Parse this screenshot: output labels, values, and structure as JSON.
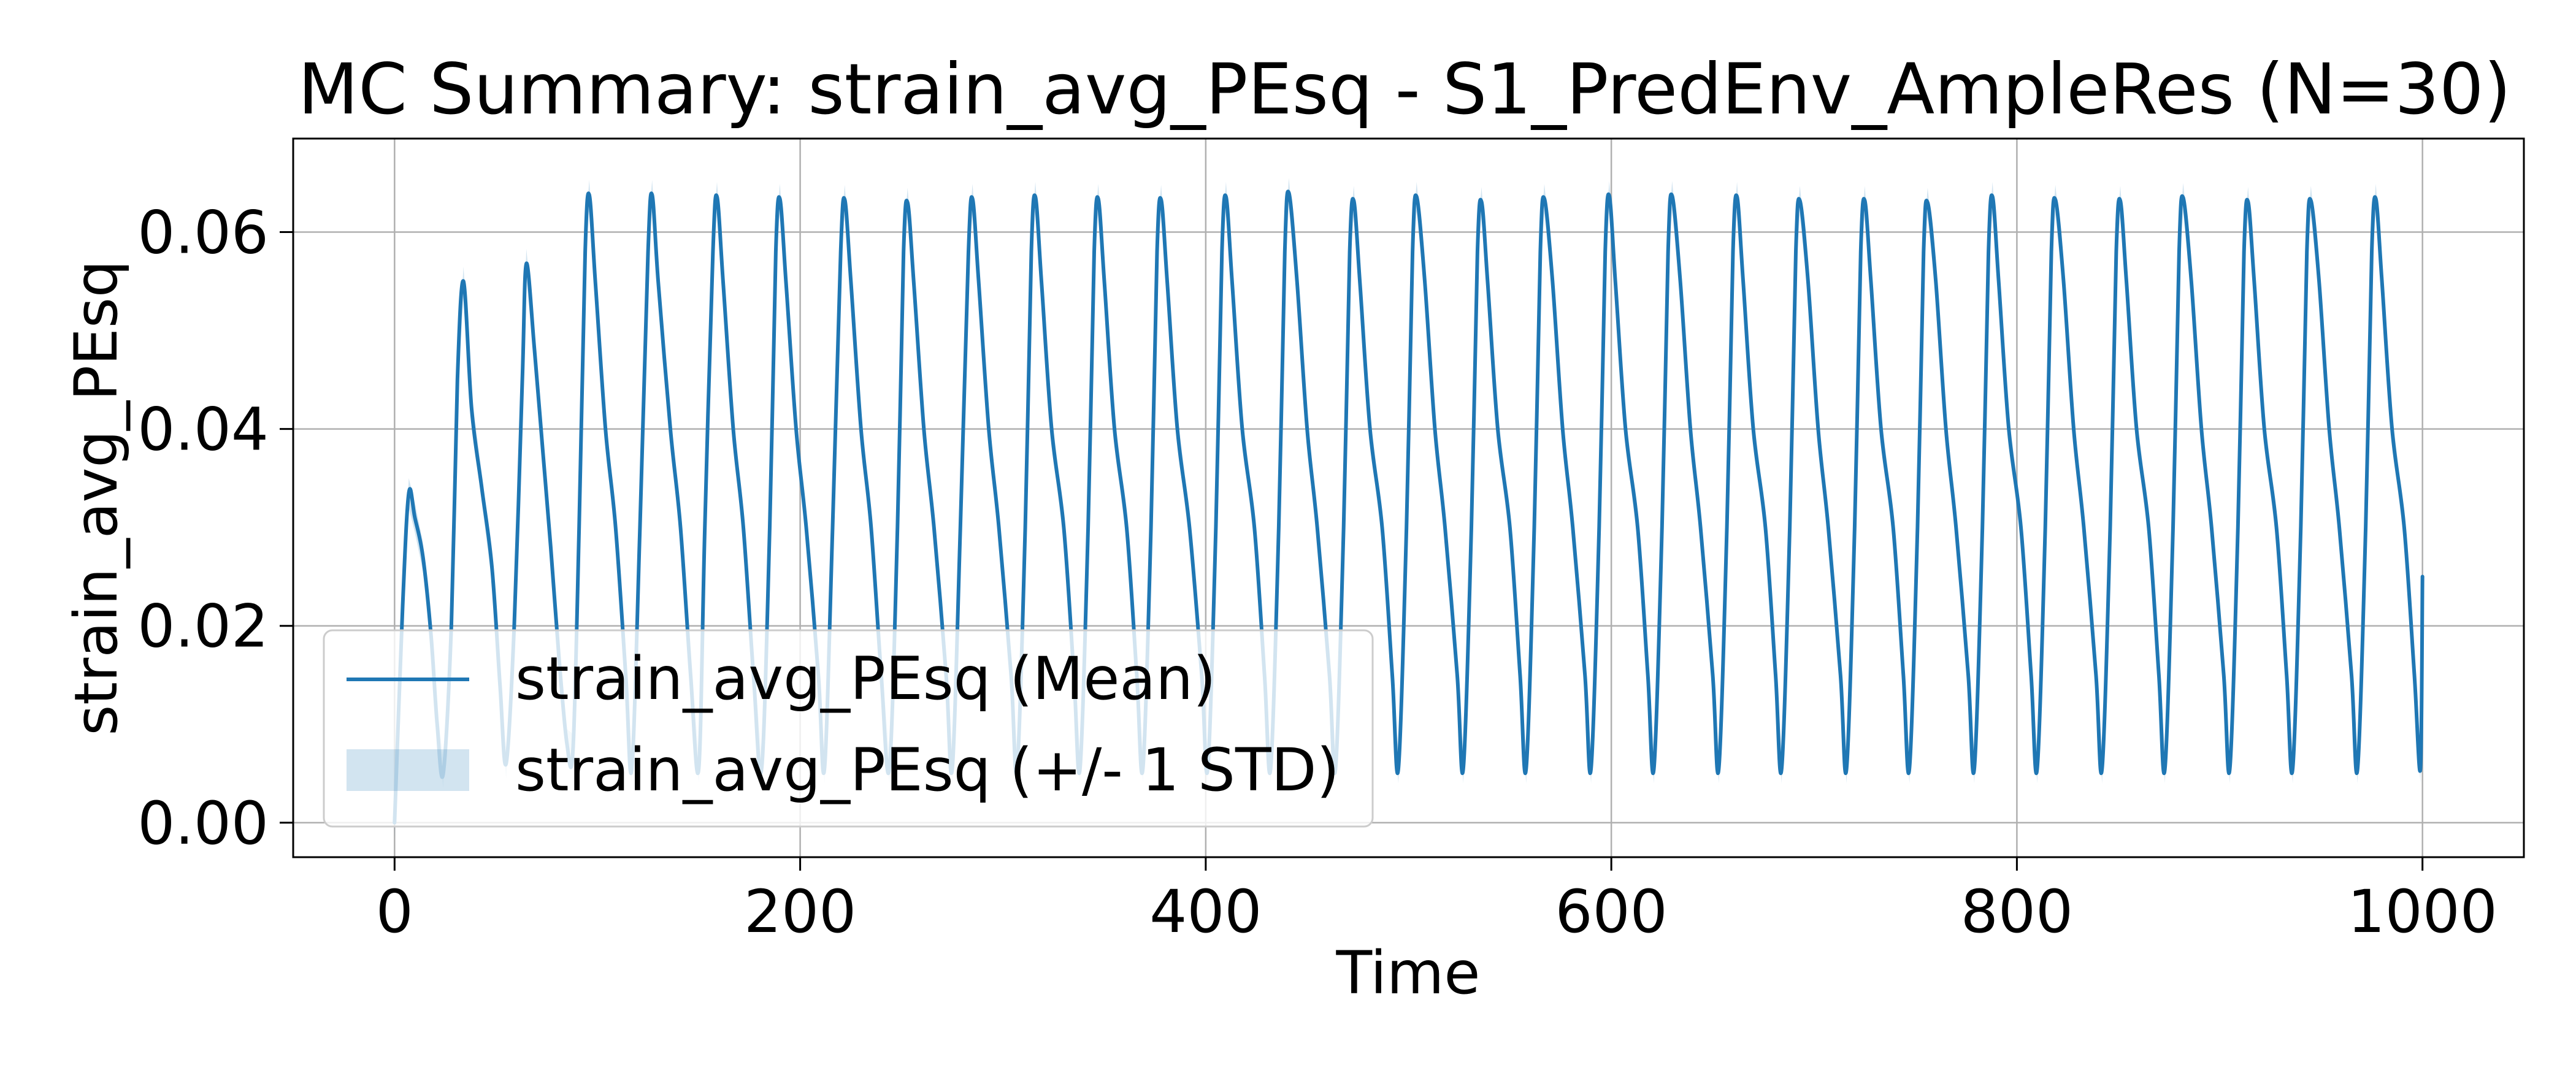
{
  "chart_data": {
    "type": "line",
    "title": "MC Summary: strain_avg_PEsq - S1_PredEnv_AmpleRes (N=30)",
    "xlabel": "Time",
    "ylabel": "strain_avg_PEsq",
    "xlim": [
      -50,
      1050
    ],
    "ylim": [
      -0.0035,
      0.0695
    ],
    "xticks": [
      0,
      200,
      400,
      600,
      800,
      1000
    ],
    "xtick_labels": [
      "0",
      "200",
      "400",
      "600",
      "800",
      "1000"
    ],
    "yticks": [
      0.0,
      0.02,
      0.04,
      0.06
    ],
    "ytick_labels": [
      "0.00",
      "0.02",
      "0.04",
      "0.06"
    ],
    "grid": true,
    "legend_position": "lower-left",
    "colors": {
      "mean": "#1f77b4",
      "band": "#1f77b4",
      "band_alpha": 0.2
    },
    "series": [
      {
        "name": "strain_avg_PEsq (Mean)",
        "kind": "line"
      },
      {
        "name": "strain_avg_PEsq (+/- 1 STD)",
        "kind": "band"
      }
    ],
    "mean_series": {
      "x": [
        0,
        4,
        7,
        10,
        14,
        18,
        21,
        24,
        28,
        31,
        34,
        38,
        43,
        48,
        52,
        55,
        59,
        63,
        65,
        69,
        73,
        77,
        81,
        85,
        88,
        91,
        94,
        96,
        99,
        104,
        109,
        114,
        117,
        121,
        125,
        127,
        130,
        136,
        141,
        146,
        150,
        153,
        157,
        159,
        162,
        167,
        172,
        177,
        181,
        185,
        188,
        190,
        193,
        198,
        203,
        209,
        212,
        216,
        220,
        222,
        225,
        230,
        235,
        240,
        244,
        248,
        251,
        253,
        256,
        261,
        266,
        272,
        275,
        279,
        283,
        285,
        288,
        293,
        298,
        304,
        307,
        311,
        314,
        316,
        319,
        324,
        330,
        335,
        338,
        342,
        345,
        347,
        350,
        355,
        361,
        366,
        369,
        373,
        376,
        378,
        381,
        386,
        392,
        398,
        401,
        405,
        408,
        410,
        413,
        418,
        424,
        429,
        432,
        436,
        439,
        441,
        445,
        450,
        455,
        461,
        464,
        468,
        471,
        473,
        476,
        481,
        487,
        492,
        495,
        499,
        502,
        504,
        508,
        513,
        518,
        524,
        527,
        531,
        534,
        536,
        539,
        544,
        550,
        555,
        558,
        562,
        565,
        567,
        571,
        576,
        581,
        587,
        590,
        594,
        597,
        599,
        602,
        607,
        613,
        618,
        621,
        625,
        628,
        630,
        634,
        639,
        644,
        650,
        653,
        657,
        660,
        662,
        665,
        670,
        676,
        681,
        684,
        688,
        691,
        693,
        697,
        702,
        707,
        713,
        716,
        720,
        723,
        725,
        728,
        733,
        739,
        744,
        747,
        751,
        754,
        756,
        760,
        765,
        770,
        776,
        779,
        783,
        786,
        788,
        791,
        796,
        802,
        807,
        810,
        814,
        817,
        819,
        823,
        828,
        833,
        839,
        842,
        846,
        849,
        851,
        854,
        859,
        865,
        870,
        873,
        877,
        880,
        882,
        886,
        891,
        896,
        902,
        905,
        909,
        912,
        914,
        917,
        922,
        928,
        933,
        936,
        940,
        943,
        945,
        949,
        954,
        959,
        965,
        968,
        972,
        975,
        977,
        980,
        985,
        991,
        996,
        999,
        1000
      ],
      "y": [
        0.0,
        0.022,
        0.0335,
        0.031,
        0.027,
        0.019,
        0.01,
        0.005,
        0.02,
        0.045,
        0.055,
        0.042,
        0.034,
        0.026,
        0.014,
        0.006,
        0.02,
        0.045,
        0.0568,
        0.048,
        0.038,
        0.028,
        0.017,
        0.008,
        0.0075,
        0.03,
        0.058,
        0.0638,
        0.055,
        0.04,
        0.03,
        0.015,
        0.0055,
        0.03,
        0.058,
        0.0638,
        0.055,
        0.04,
        0.03,
        0.015,
        0.0055,
        0.03,
        0.058,
        0.0636,
        0.055,
        0.04,
        0.03,
        0.015,
        0.0055,
        0.03,
        0.058,
        0.0634,
        0.055,
        0.04,
        0.03,
        0.015,
        0.0055,
        0.03,
        0.058,
        0.0633,
        0.055,
        0.04,
        0.03,
        0.015,
        0.0055,
        0.03,
        0.058,
        0.063,
        0.055,
        0.04,
        0.03,
        0.015,
        0.0055,
        0.03,
        0.058,
        0.0634,
        0.055,
        0.04,
        0.03,
        0.015,
        0.0055,
        0.03,
        0.058,
        0.0636,
        0.055,
        0.04,
        0.03,
        0.015,
        0.0055,
        0.03,
        0.058,
        0.0634,
        0.055,
        0.04,
        0.03,
        0.015,
        0.0055,
        0.03,
        0.058,
        0.0633,
        0.055,
        0.04,
        0.03,
        0.015,
        0.0055,
        0.03,
        0.058,
        0.0636,
        0.055,
        0.04,
        0.03,
        0.015,
        0.0055,
        0.03,
        0.058,
        0.064,
        0.055,
        0.04,
        0.03,
        0.015,
        0.0055,
        0.03,
        0.058,
        0.0632,
        0.055,
        0.04,
        0.03,
        0.015,
        0.0055,
        0.03,
        0.058,
        0.0636,
        0.055,
        0.04,
        0.03,
        0.015,
        0.0055,
        0.03,
        0.058,
        0.0631,
        0.055,
        0.04,
        0.03,
        0.015,
        0.0055,
        0.03,
        0.058,
        0.0634,
        0.055,
        0.04,
        0.03,
        0.015,
        0.0055,
        0.03,
        0.058,
        0.0637,
        0.055,
        0.04,
        0.03,
        0.015,
        0.0055,
        0.03,
        0.058,
        0.0637,
        0.055,
        0.04,
        0.03,
        0.015,
        0.0055,
        0.03,
        0.058,
        0.0636,
        0.055,
        0.04,
        0.03,
        0.015,
        0.0055,
        0.03,
        0.058,
        0.0632,
        0.055,
        0.04,
        0.03,
        0.015,
        0.0055,
        0.03,
        0.058,
        0.0632,
        0.055,
        0.04,
        0.03,
        0.015,
        0.0055,
        0.03,
        0.058,
        0.063,
        0.055,
        0.04,
        0.03,
        0.015,
        0.0055,
        0.03,
        0.058,
        0.0636,
        0.055,
        0.04,
        0.03,
        0.015,
        0.0055,
        0.03,
        0.058,
        0.0633,
        0.055,
        0.04,
        0.03,
        0.015,
        0.0055,
        0.03,
        0.058,
        0.0632,
        0.055,
        0.04,
        0.03,
        0.015,
        0.0055,
        0.03,
        0.058,
        0.0635,
        0.055,
        0.04,
        0.03,
        0.015,
        0.0055,
        0.03,
        0.058,
        0.0631,
        0.055,
        0.04,
        0.03,
        0.015,
        0.0055,
        0.03,
        0.058,
        0.0632,
        0.055,
        0.04,
        0.03,
        0.015,
        0.0055,
        0.03,
        0.058,
        0.0634,
        0.055,
        0.04,
        0.03,
        0.015,
        0.0055,
        0.025
      ]
    },
    "std_approx": 0.0015
  }
}
